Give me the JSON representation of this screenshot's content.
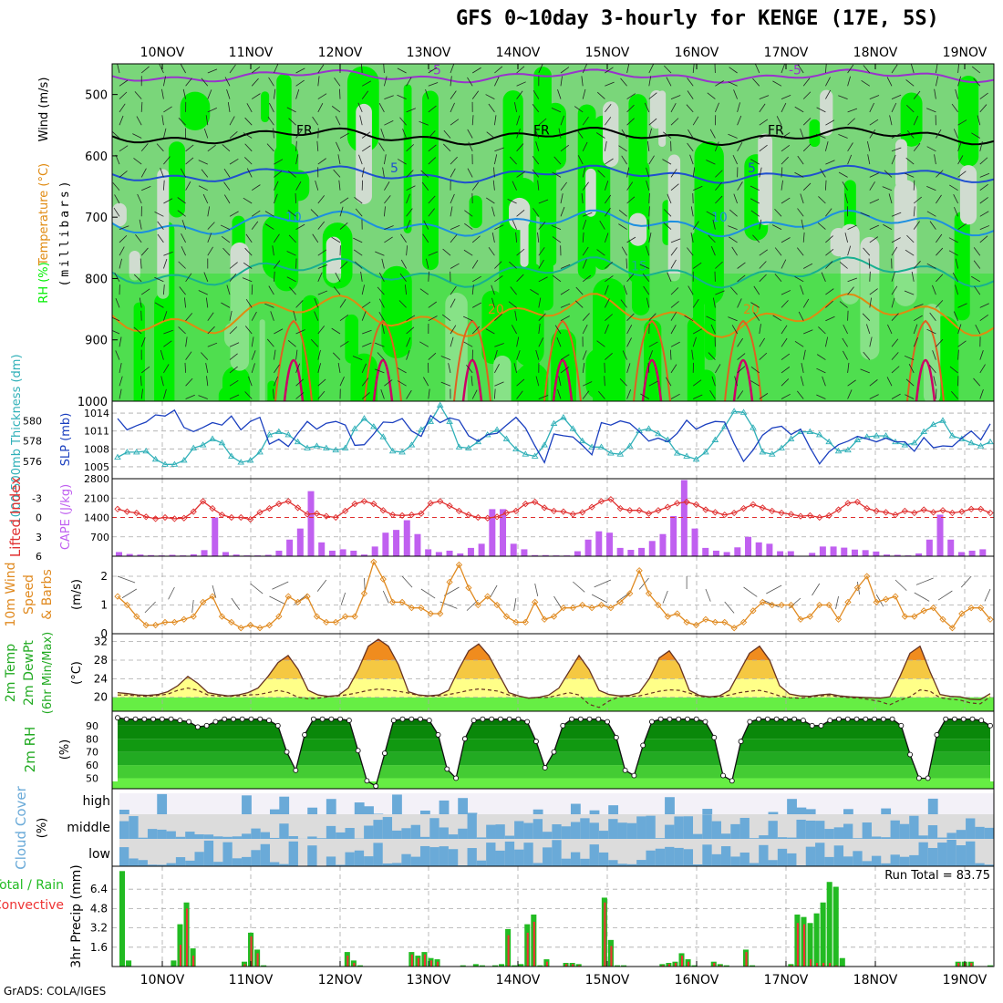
{
  "title": "GFS 0~10day 3-hourly for KENGE (17E, 5S)",
  "credit": "GrADS: COLA/IGES",
  "run_total_label": "Run Total = 83.75",
  "colors": {
    "rh_light": "#d0dcd0",
    "rh_mid": "#7ad67a",
    "rh_bright": "#00ee00",
    "freezing": "#000000",
    "temp_neg": "#9933cc",
    "temp_5": "#1f4fcf",
    "temp_10": "#1c8fe0",
    "temp_15": "#18b090",
    "temp_20": "#e08a10",
    "temp_25": "#e06020",
    "temp_30": "#cc0066",
    "slp": "#1a3fbf",
    "thickness": "#30b0b8",
    "lifted": "#e03030",
    "cape": "#c060f0",
    "wind10": "#e08a20",
    "precip_total": "#22bb22",
    "precip_conv": "#ee3333",
    "cloud_blue": "#6aaad8",
    "cloud_gray": "#dcdcdc",
    "cloud_high_bg": "#f3f1f8"
  },
  "dates": [
    "10NOV",
    "11NOV",
    "12NOV",
    "13NOV",
    "14NOV",
    "15NOV",
    "16NOV",
    "17NOV",
    "18NOV",
    "19NOV"
  ],
  "chart_data": [
    {
      "type": "heatmap",
      "name": "upper",
      "ylabel_parts": [
        "RH (%)",
        "Temperature (°C)",
        "Wind (m/s)"
      ],
      "ylabel_unit": "(millibars)",
      "y_ticks": [
        500,
        600,
        700,
        800,
        900,
        1000
      ],
      "ylim": [
        450,
        1000
      ],
      "contour_labels": [
        "-5",
        "FR",
        "5",
        "10",
        "15",
        "20"
      ]
    },
    {
      "type": "line",
      "name": "slp-thickness",
      "left_label": "1000-500mb Thickness (dm)",
      "right_label": "SLP (mb)",
      "left_ticks": [
        576,
        578,
        580
      ],
      "right_ticks": [
        1005,
        1008,
        1011,
        1014
      ],
      "slp": [
        1013.1,
        1011.2,
        1011.9,
        1012.5,
        1013.7,
        1013.5,
        1014.5,
        1011.6,
        1010.9,
        1011.6,
        1012.4,
        1012.0,
        1013.5,
        1011.2,
        1012.6,
        1013.3,
        1008.8,
        1009.6,
        1008.4,
        1010.6,
        1012.6,
        1011.3,
        1012.3,
        1012.6,
        1012.0,
        1008.6,
        1008.7,
        1010.5,
        1012.5,
        1012.4,
        1013.1,
        1011.0,
        1010.1,
        1013.6,
        1012.4,
        1013.2,
        1012.8,
        1010.2,
        1009.3,
        1010.4,
        1010.6,
        1012.0,
        1013.3,
        1011.5,
        1008.5,
        1005.7,
        1010.5,
        1010.2,
        1010.0,
        1008.6,
        1007.0,
        1012.4,
        1012.0,
        1012.7,
        1012.3,
        1010.9,
        1009.3,
        1009.8,
        1009.2,
        1010.6,
        1012.8,
        1011.3,
        1012.1,
        1012.6,
        1012.5,
        1008.9,
        1005.9,
        1007.8,
        1010.3,
        1011.5,
        1011.8,
        1010.4,
        1011.3,
        1008.2,
        1005.5,
        1007.5,
        1008.7,
        1009.3,
        1010.1,
        1009.7,
        1009.2,
        1009.8,
        1009.2,
        1009.2,
        1007.6,
        1009.9,
        1008.2,
        1008.5,
        1008.4,
        1009.8,
        1011.0,
        1009.5,
        1012.2
      ],
      "thickness": [
        576.4,
        576.9,
        576.9,
        577.0,
        576.2,
        575.7,
        575.7,
        576.1,
        577.3,
        577.6,
        578.2,
        577.8,
        576.5,
        575.9,
        576.1,
        576.9,
        578.6,
        578.9,
        578.6,
        577.9,
        577.3,
        577.5,
        577.3,
        577.1,
        577.3,
        579.2,
        580.2,
        579.4,
        578.4,
        577.0,
        576.9,
        577.6,
        579.1,
        579.9,
        581.5,
        579.9,
        577.4,
        577.3,
        577.9,
        578.6,
        579.1,
        578.2,
        577.2,
        576.7,
        576.5,
        577.6,
        579.7,
        580.3,
        579.2,
        578.0,
        577.4,
        577.4,
        576.8,
        576.7,
        577.5,
        579.0,
        579.2,
        578.7,
        578.1,
        576.8,
        576.5,
        576.2,
        576.9,
        578.1,
        579.4,
        580.9,
        580.8,
        579.3,
        576.9,
        576.7,
        577.3,
        578.2,
        578.9,
        578.9,
        578.6,
        577.9,
        577.0,
        577.1,
        578.1,
        578.4,
        578.5,
        578.5,
        577.9,
        577.6,
        577.8,
        578.9,
        579.6,
        580.0,
        578.5,
        578.2,
        577.8,
        577.5,
        577.9
      ]
    },
    {
      "type": "bar",
      "name": "lifted-index-cape",
      "left_label": "Lifted Index",
      "right_label": "CAPE (J/kg)",
      "left_ticks": [
        -3,
        0,
        3,
        6
      ],
      "right_ticks": [
        700,
        1400,
        2100,
        2800
      ],
      "cape": [
        150,
        80,
        60,
        40,
        30,
        50,
        30,
        70,
        220,
        1400,
        150,
        60,
        30,
        30,
        50,
        200,
        600,
        1000,
        2350,
        500,
        200,
        250,
        200,
        60,
        350,
        850,
        950,
        1300,
        800,
        250,
        150,
        200,
        100,
        300,
        450,
        1700,
        1700,
        450,
        250,
        40,
        40,
        30,
        30,
        180,
        600,
        900,
        850,
        300,
        230,
        300,
        550,
        800,
        1450,
        2750,
        1000,
        300,
        200,
        150,
        320,
        700,
        500,
        450,
        180,
        180,
        0,
        120,
        350,
        350,
        310,
        240,
        220,
        170,
        60,
        50,
        30,
        100,
        600,
        1500,
        600,
        150,
        200,
        250
      ],
      "lifted_index": [
        -1.3,
        -0.9,
        -0.7,
        -0.1,
        0.2,
        0.0,
        0.2,
        0.1,
        -0.9,
        -2.5,
        -1.4,
        -0.4,
        0.0,
        0.0,
        0.3,
        -0.8,
        -1.4,
        -2.1,
        -2.5,
        -1.5,
        -0.5,
        -0.6,
        -0.2,
        0.0,
        -1.0,
        -2.1,
        -2.5,
        -2.1,
        -1.1,
        -0.4,
        -0.3,
        -0.4,
        -0.6,
        -2.2,
        -2.5,
        -1.8,
        -1.0,
        -0.4,
        0.0,
        0.1,
        -0.1,
        -0.7,
        -1.0,
        -2.1,
        -2.4,
        -1.5,
        -1.0,
        -0.9,
        -0.5,
        -0.8,
        -1.6,
        -2.5,
        -2.8,
        -1.4,
        -1.1,
        -1.1,
        -0.6,
        -1.1,
        -1.6,
        -2.2,
        -2.4,
        -2.0,
        -1.2,
        -0.8,
        -0.4,
        -0.7,
        -1.4,
        -2.0,
        -1.5,
        -1.0,
        -0.7,
        -0.5,
        -0.2,
        -0.3,
        0.0,
        -0.3,
        -1.2,
        -2.2,
        -2.4,
        -1.4,
        -1.0,
        -0.8,
        -0.4,
        -1.0,
        -0.7,
        -1.2,
        -0.8,
        -1.1,
        -0.7,
        -0.9,
        -1.3,
        -1.3,
        -0.7
      ]
    },
    {
      "type": "line",
      "name": "wind10",
      "ylabel": [
        "10m Wind",
        "Speed",
        "& Barbs"
      ],
      "yunit": "(m/s)",
      "y_ticks": [
        0,
        1,
        2
      ],
      "speed": [
        1.3,
        1.0,
        0.6,
        0.3,
        0.3,
        0.4,
        0.4,
        0.5,
        0.6,
        1.1,
        1.3,
        0.6,
        0.4,
        0.2,
        0.3,
        0.2,
        0.3,
        0.6,
        1.3,
        1.1,
        1.3,
        0.6,
        0.4,
        0.4,
        0.6,
        0.6,
        1.4,
        2.5,
        1.9,
        1.1,
        1.1,
        0.9,
        0.9,
        0.7,
        0.7,
        1.8,
        2.4,
        1.6,
        1.0,
        1.3,
        1.0,
        0.6,
        0.4,
        0.4,
        1.1,
        0.5,
        0.6,
        0.9,
        0.9,
        1.0,
        0.9,
        1.0,
        0.9,
        1.1,
        1.4,
        2.2,
        1.4,
        1.0,
        0.6,
        0.7,
        0.4,
        0.3,
        0.5,
        0.4,
        0.4,
        0.2,
        0.4,
        0.8,
        1.1,
        1.0,
        1.0,
        1.0,
        0.5,
        0.6,
        1.0,
        1.0,
        0.5,
        1.1,
        1.6,
        2.0,
        1.1,
        1.2,
        1.3,
        0.6,
        0.6,
        0.8,
        0.9,
        0.5,
        0.2,
        0.7,
        0.9,
        0.9,
        0.5
      ]
    },
    {
      "type": "area",
      "name": "temp2m",
      "ylabel": [
        "2m Temp",
        "2m DewPt",
        "(6hr Min/Max)"
      ],
      "yunit": "(°C)",
      "y_ticks": [
        20,
        24,
        28,
        32
      ],
      "temp": [
        21,
        20.8,
        20.5,
        20.4,
        20.6,
        21.2,
        22.5,
        24.5,
        23,
        21,
        20.6,
        20.3,
        20.5,
        21,
        22,
        24.5,
        27.5,
        29,
        26,
        21.5,
        20.5,
        20.2,
        20.4,
        22,
        26,
        31,
        32.5,
        31,
        27,
        21.2,
        20.5,
        20.3,
        20.5,
        21.5,
        26,
        30,
        31.5,
        29,
        25,
        21,
        20.3,
        19.8,
        20,
        20.5,
        22,
        25.5,
        29,
        26,
        21.5,
        20.6,
        20.3,
        20.4,
        21,
        24,
        28.5,
        30,
        27,
        21.5,
        20.4,
        20.1,
        20.3,
        21.5,
        25.5,
        29.5,
        31,
        28,
        22.5,
        20.7,
        20.3,
        20.2,
        20.5,
        20.7,
        20.3,
        20.1,
        20,
        19.9,
        19.8,
        20.1,
        24.5,
        29.5,
        31,
        25.5,
        20.6,
        20.2,
        20.1,
        19.6,
        19.5,
        20.8
      ],
      "dewpt": [
        20.5,
        20.5,
        20.3,
        20.2,
        20.4,
        20.7,
        21.5,
        22,
        21.5,
        20.5,
        20.3,
        20.2,
        20.3,
        20.5,
        20.6,
        21,
        21.5,
        21,
        20,
        19.7,
        19.8,
        20.1,
        20.3,
        20.6,
        21,
        21.5,
        21.8,
        21.6,
        21.3,
        20.9,
        20.4,
        20.2,
        20.3,
        20.6,
        21,
        21.5,
        21.8,
        21.6,
        21.3,
        20.5,
        20.2,
        19.8,
        19.9,
        20,
        20.5,
        21,
        20.5,
        18.5,
        17.8,
        19.2,
        20.1,
        20.2,
        20.3,
        20.8,
        21.3,
        21.6,
        21.5,
        20.9,
        20.2,
        20,
        20.1,
        20.5,
        21,
        21.3,
        21.5,
        21,
        20.3,
        19.9,
        19.8,
        20,
        20.3,
        20.4,
        20.1,
        19.9,
        19.8,
        19.5,
        19.1,
        18.4,
        19.4,
        20.1,
        21.6,
        21.3,
        19.9,
        19.6,
        19.4,
        18.8,
        18.6,
        20.1
      ]
    },
    {
      "type": "area",
      "name": "rh2m",
      "ylabel": "2m RH",
      "yunit": "(%)",
      "y_ticks": [
        50,
        60,
        70,
        80,
        90
      ],
      "rh": [
        96,
        95,
        95,
        95,
        95,
        95,
        95,
        94,
        93,
        89,
        90,
        93,
        95,
        95,
        95,
        95,
        95,
        94,
        90,
        70,
        56,
        83,
        95,
        95,
        95,
        95,
        94,
        71,
        48,
        44,
        69,
        94,
        95,
        95,
        95,
        94,
        83,
        57,
        50,
        80,
        94,
        95,
        95,
        95,
        95,
        95,
        93,
        78,
        58,
        70,
        90,
        95,
        95,
        95,
        95,
        93,
        81,
        56,
        52,
        75,
        93,
        95,
        95,
        95,
        95,
        95,
        93,
        81,
        52,
        48,
        78,
        93,
        95,
        95,
        95,
        95,
        95,
        94,
        90,
        90,
        94,
        95,
        95,
        95,
        95,
        95,
        95,
        95,
        90,
        68,
        50,
        50,
        83,
        95,
        95,
        95,
        95,
        94,
        90
      ]
    },
    {
      "type": "heatmap",
      "name": "cloud-cover",
      "ylabel": "Cloud Cover",
      "yunit": "(%)",
      "levels": [
        "high",
        "middle",
        "low"
      ]
    },
    {
      "type": "bar",
      "name": "precip",
      "ylabel": "3hr Precip (mm)",
      "left_label_parts": [
        "Total / Rain",
        "Convective"
      ],
      "y_ticks": [
        1.6,
        3.2,
        4.8,
        6.4
      ],
      "total": [
        7.9,
        0.5,
        0,
        0,
        0,
        0,
        0,
        0,
        0.5,
        3.5,
        5.3,
        1.5,
        0,
        0,
        0,
        0,
        0,
        0,
        0,
        0.4,
        2.8,
        1.4,
        0.1,
        0,
        0,
        0,
        0,
        0,
        0,
        0,
        0,
        0,
        0,
        0,
        0,
        1.2,
        0.5,
        0.1,
        0,
        0,
        0,
        0,
        0,
        0,
        0,
        1.2,
        0.9,
        1.2,
        0.7,
        0.6,
        0,
        0,
        0,
        0.1,
        0,
        0.2,
        0.1,
        0,
        0.1,
        0.2,
        3.1,
        0.1,
        0.2,
        3.5,
        4.3,
        0.1,
        0.6,
        0,
        0,
        0.3,
        0.3,
        0.2,
        0,
        0,
        0,
        5.7,
        2.2,
        0.1,
        0.1,
        0,
        0,
        0,
        0,
        0,
        0.2,
        0.3,
        0.4,
        1.1,
        0.6,
        0.1,
        0,
        0,
        0.4,
        0.2,
        0.1,
        0,
        0,
        1.4,
        0.1,
        0,
        0,
        0,
        0,
        0,
        0.2,
        4.3,
        4.1,
        3.6,
        4.4,
        5.3,
        7.0,
        6.6,
        0.7,
        0,
        0,
        0,
        0,
        0,
        0,
        0,
        0,
        0,
        0,
        0,
        0,
        0,
        0,
        0,
        0,
        0,
        0.4,
        0.4,
        0.4,
        0,
        0,
        0.1
      ],
      "convective": [
        0,
        0,
        0,
        0,
        0,
        0,
        0,
        0,
        0,
        1.8,
        4.8,
        0.9,
        0,
        0,
        0,
        0,
        0,
        0,
        0,
        0.2,
        2.5,
        1.1,
        0,
        0,
        0,
        0,
        0,
        0,
        0,
        0,
        0,
        0,
        0,
        0,
        0,
        0.9,
        0.3,
        0,
        0,
        0,
        0,
        0,
        0,
        0,
        0,
        1,
        0.7,
        1,
        0.5,
        0.4,
        0,
        0,
        0,
        0,
        0,
        0,
        0,
        0,
        0,
        0,
        2.6,
        0,
        0,
        2.8,
        3.7,
        0,
        0.4,
        0,
        0,
        0.2,
        0.2,
        0.1,
        0,
        0,
        0,
        5.3,
        1.7,
        0,
        0,
        0,
        0,
        0,
        0,
        0,
        0.1,
        0.2,
        0.3,
        0.9,
        0.4,
        0,
        0,
        0,
        0.3,
        0.1,
        0,
        0,
        0,
        1.2,
        0,
        0,
        0,
        0,
        0,
        0,
        0.1,
        3.6,
        3.5,
        0.6,
        0.3,
        0.3,
        0.3,
        0.1,
        0,
        0,
        0,
        0,
        0,
        0,
        0,
        0,
        0,
        0,
        0,
        0,
        0,
        0,
        0,
        0,
        0,
        0,
        0.3,
        0.3,
        0.3,
        0,
        0,
        0
      ]
    }
  ]
}
